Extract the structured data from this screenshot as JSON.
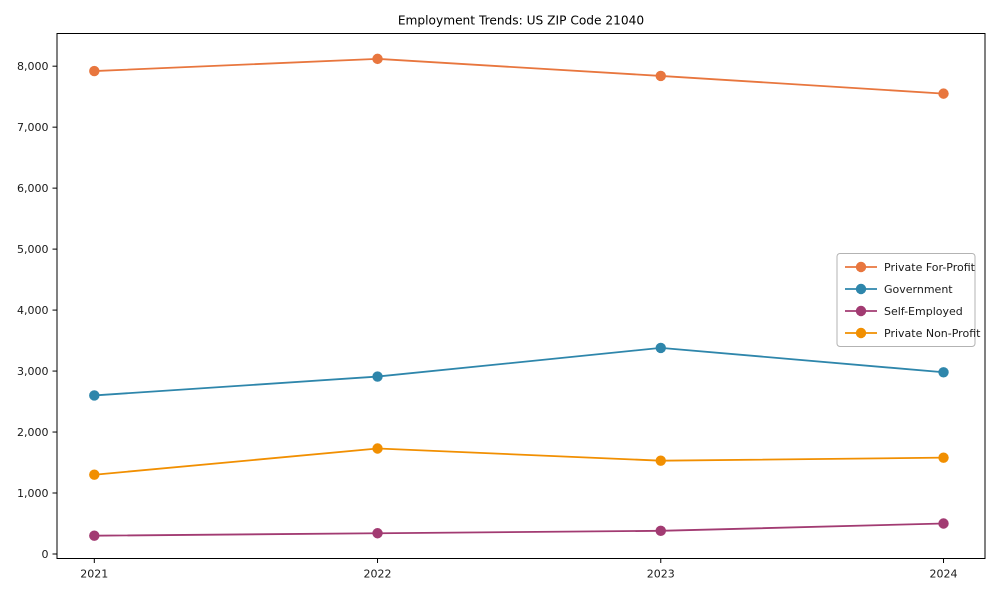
{
  "figure": {
    "background": "#ffffff",
    "axis_color": "#000000",
    "text_color": "#000000",
    "legend_border_color": "#b3b3b3",
    "legend_background": "#ffffff"
  },
  "chart_data": {
    "type": "line",
    "title": "Employment Trends: US ZIP Code 21040",
    "xlabel": "",
    "ylabel": "",
    "categories": [
      "2021",
      "2022",
      "2023",
      "2024"
    ],
    "series": [
      {
        "name": "Private For-Profit",
        "color": "#e8763e",
        "values": [
          7920,
          8120,
          7840,
          7550
        ]
      },
      {
        "name": "Government",
        "color": "#2e86ab",
        "values": [
          2600,
          2910,
          3380,
          2980
        ]
      },
      {
        "name": "Self-Employed",
        "color": "#a23b72",
        "values": [
          300,
          340,
          380,
          500
        ]
      },
      {
        "name": "Private Non-Profit",
        "color": "#f18f01",
        "values": [
          1300,
          1730,
          1530,
          1580
        ]
      }
    ],
    "ytick_values": [
      0,
      1000,
      2000,
      3000,
      4000,
      5000,
      6000,
      7000,
      8000
    ],
    "ytick_labels": [
      "0",
      "1,000",
      "2,000",
      "3,000",
      "4,000",
      "5,000",
      "6,000",
      "7,000",
      "8,000"
    ],
    "ylim": [
      -74,
      8536
    ],
    "grid": false,
    "legend_position": "center right",
    "marker": "circle",
    "line_width": 1.8
  }
}
